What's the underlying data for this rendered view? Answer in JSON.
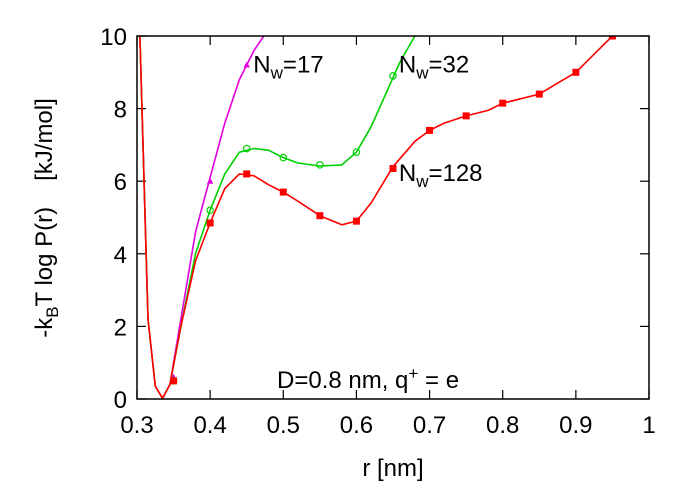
{
  "chart_data": {
    "type": "line",
    "xlabel": "r [nm]",
    "ylabel": {
      "prefix": "-k",
      "sub": "B",
      "main": "T log P(r)",
      "units": "[kJ/mol]"
    },
    "xlim": [
      0.3,
      1.0
    ],
    "ylim": [
      0,
      10
    ],
    "xticks": [
      {
        "value": 0.3,
        "label": "0.3"
      },
      {
        "value": 0.4,
        "label": "0.4"
      },
      {
        "value": 0.5,
        "label": "0.5"
      },
      {
        "value": 0.6,
        "label": "0.6"
      },
      {
        "value": 0.7,
        "label": "0.7"
      },
      {
        "value": 0.8,
        "label": "0.8"
      },
      {
        "value": 0.9,
        "label": "0.9"
      },
      {
        "value": 1.0,
        "label": "1"
      }
    ],
    "yticks": [
      {
        "value": 0,
        "label": "0"
      },
      {
        "value": 2,
        "label": "2"
      },
      {
        "value": 4,
        "label": "4"
      },
      {
        "value": 6,
        "label": "6"
      },
      {
        "value": 8,
        "label": "8"
      },
      {
        "value": 10,
        "label": "10"
      }
    ],
    "grid": false,
    "legend": "none",
    "annotation": {
      "prefix": "D=0.8 nm, q",
      "sup": "+",
      "suffix": " = e"
    },
    "series": [
      {
        "name": "17",
        "label_prefix": "N",
        "label_sub": "w",
        "label_suffix": "=17",
        "color": "#e000e0",
        "marker": "triangle",
        "curve_x": [
          0.304,
          0.315,
          0.325,
          0.335,
          0.345,
          0.36,
          0.38,
          0.4,
          0.42,
          0.44,
          0.46,
          0.48,
          0.5
        ],
        "curve_y": [
          10.0,
          2.2,
          0.35,
          0.02,
          0.4,
          2.2,
          4.6,
          6.1,
          7.6,
          8.8,
          9.6,
          10.2,
          10.8
        ],
        "markers_x": [
          0.35,
          0.4,
          0.45
        ],
        "markers_y": [
          0.6,
          6.0,
          9.2
        ]
      },
      {
        "name": "32",
        "label_prefix": "N",
        "label_sub": "w",
        "label_suffix": "=32",
        "color": "#00d000",
        "marker": "circle",
        "curve_x": [
          0.304,
          0.315,
          0.325,
          0.335,
          0.345,
          0.36,
          0.38,
          0.4,
          0.42,
          0.44,
          0.46,
          0.48,
          0.5,
          0.52,
          0.55,
          0.58,
          0.6,
          0.62,
          0.64,
          0.66,
          0.68,
          0.7
        ],
        "curve_y": [
          10.0,
          2.2,
          0.35,
          0.02,
          0.4,
          2.0,
          4.0,
          5.2,
          6.2,
          6.8,
          6.9,
          6.85,
          6.65,
          6.5,
          6.42,
          6.45,
          6.8,
          7.5,
          8.4,
          9.3,
          10.0,
          10.6
        ],
        "markers_x": [
          0.35,
          0.4,
          0.45,
          0.5,
          0.55,
          0.6,
          0.65
        ],
        "markers_y": [
          0.5,
          5.2,
          6.9,
          6.65,
          6.45,
          6.8,
          8.9
        ]
      },
      {
        "name": "128",
        "label_prefix": "N",
        "label_sub": "w",
        "label_suffix": "=128",
        "color": "#ff0000",
        "marker": "square",
        "curve_x": [
          0.304,
          0.315,
          0.325,
          0.335,
          0.345,
          0.36,
          0.38,
          0.4,
          0.42,
          0.44,
          0.46,
          0.48,
          0.5,
          0.52,
          0.55,
          0.58,
          0.6,
          0.62,
          0.65,
          0.68,
          0.7,
          0.72,
          0.75,
          0.78,
          0.8,
          0.85,
          0.9,
          0.95
        ],
        "curve_y": [
          10.0,
          2.2,
          0.35,
          0.02,
          0.4,
          2.0,
          3.8,
          4.85,
          5.8,
          6.2,
          6.15,
          5.9,
          5.7,
          5.45,
          5.05,
          4.8,
          4.9,
          5.4,
          6.4,
          7.1,
          7.4,
          7.6,
          7.8,
          7.95,
          8.15,
          8.4,
          9.0,
          10.0
        ],
        "markers_x": [
          0.35,
          0.4,
          0.45,
          0.5,
          0.55,
          0.6,
          0.65,
          0.7,
          0.75,
          0.8,
          0.85,
          0.9,
          0.95
        ],
        "markers_y": [
          0.5,
          4.85,
          6.2,
          5.7,
          5.05,
          4.9,
          6.35,
          7.4,
          7.8,
          8.15,
          8.4,
          9.0,
          10.0
        ]
      }
    ],
    "series_labels": [
      {
        "series": 0,
        "x": 0.459,
        "y": 9.0
      },
      {
        "series": 1,
        "x": 0.658,
        "y": 9.0
      },
      {
        "series": 2,
        "x": 0.658,
        "y": 6.0
      }
    ]
  }
}
